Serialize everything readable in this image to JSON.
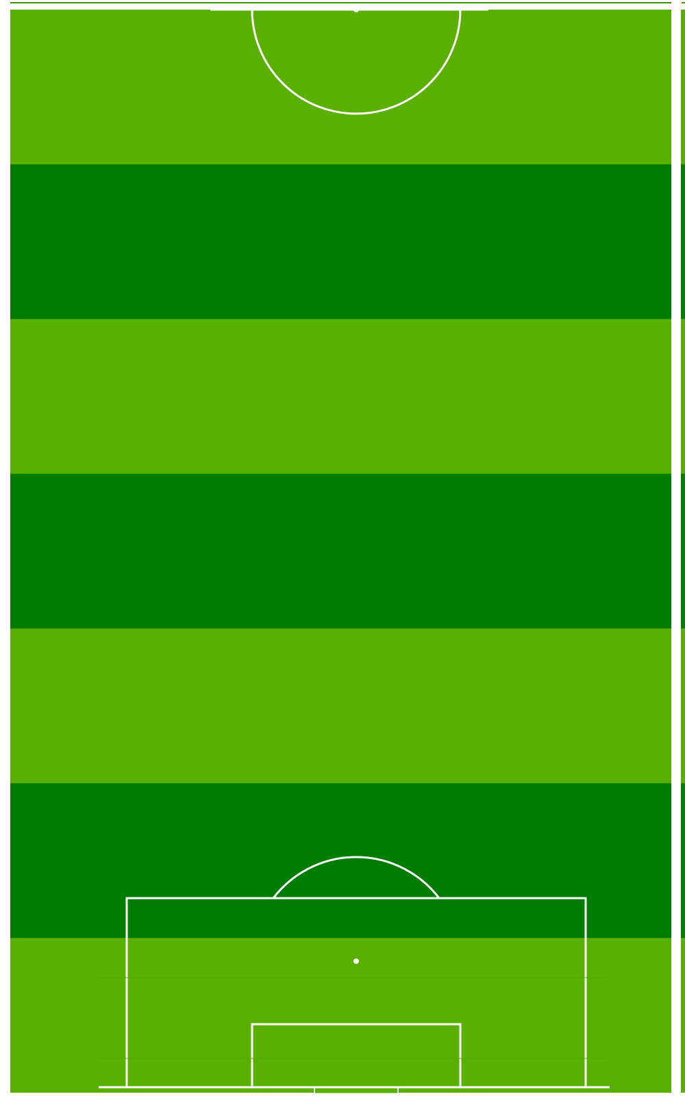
{
  "pitch": {
    "view": "half-pitch",
    "orientation": "goal-at-bottom",
    "stripe_count": 7,
    "colors": {
      "light_stripe": "#5AB000",
      "dark_stripe": "#007D00",
      "lines": "#FFFFFF",
      "border": "#3F8F00",
      "background": "#FFFFFF"
    }
  }
}
